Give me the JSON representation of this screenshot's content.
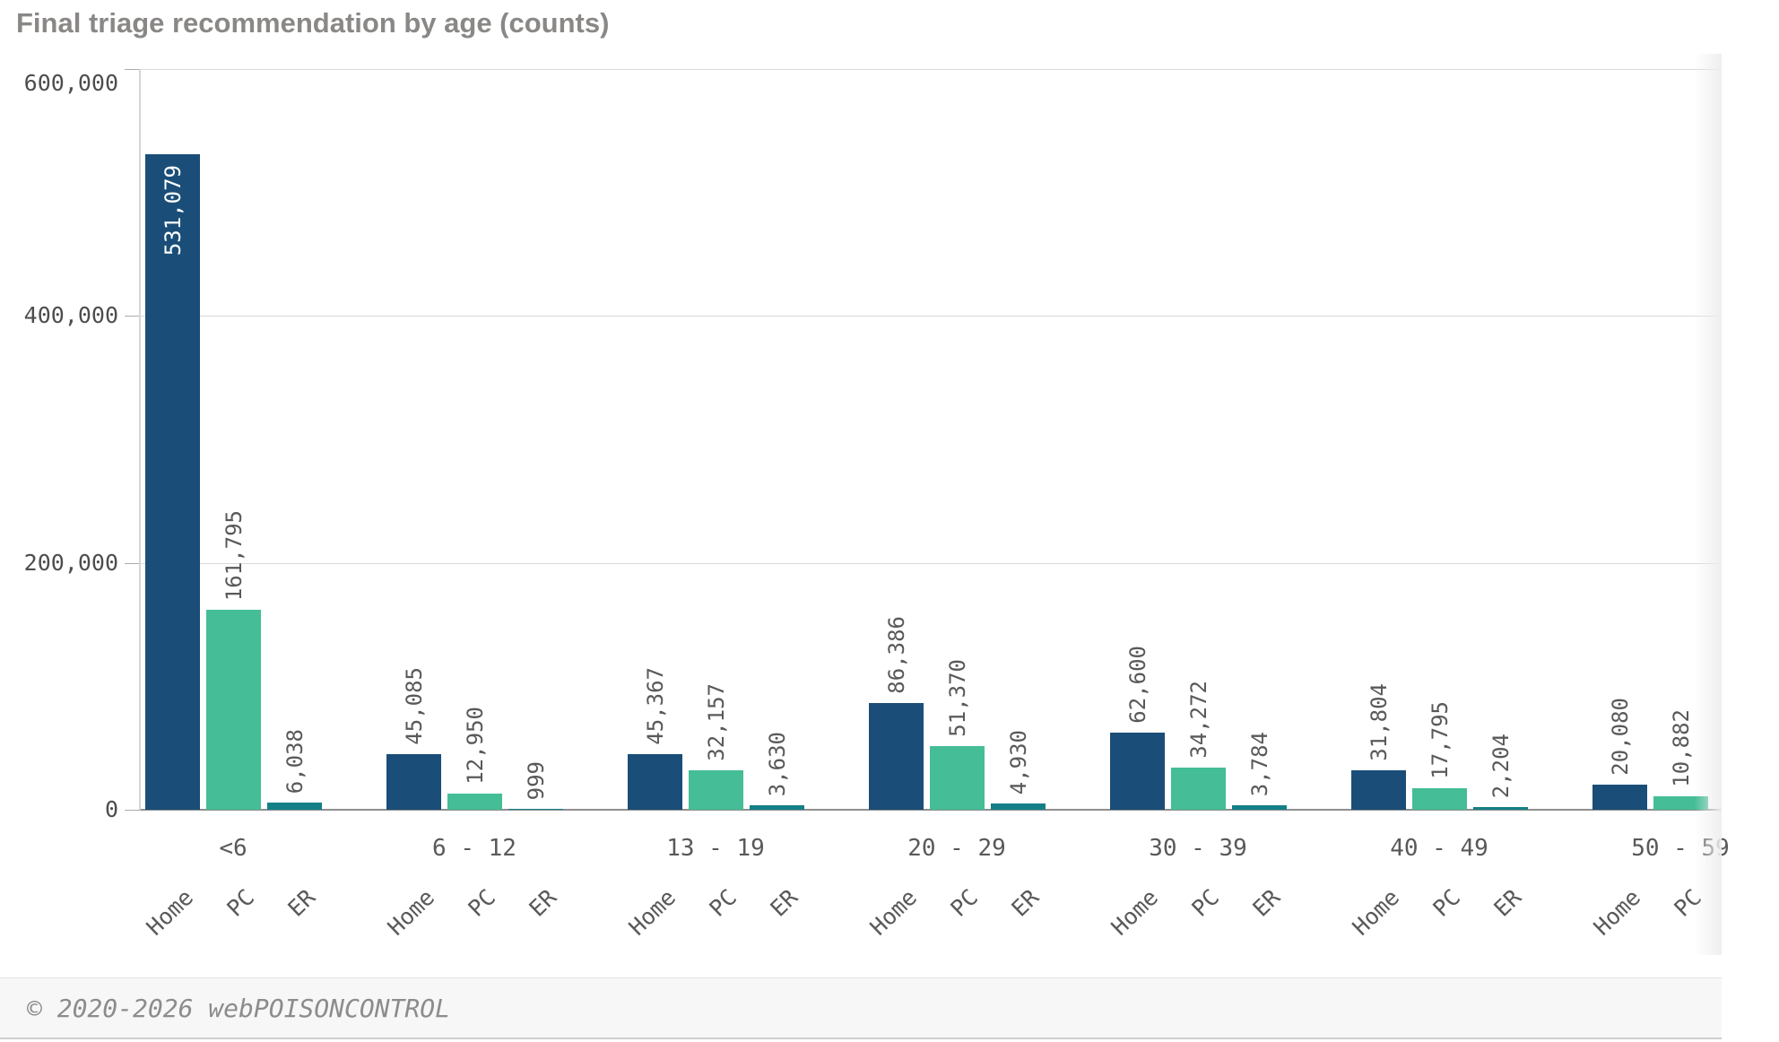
{
  "chart_data": {
    "type": "bar",
    "title": "Final triage recommendation by age (counts)",
    "categories": [
      "<6",
      "6 - 12",
      "13 - 19",
      "20 - 29",
      "30 - 39",
      "40 - 49",
      "50 - 59"
    ],
    "series": [
      {
        "name": "Home",
        "color": "#1a4e78",
        "values": [
          531079,
          45085,
          45367,
          86386,
          62600,
          31804,
          20080
        ]
      },
      {
        "name": "PC",
        "color": "#45bd97",
        "values": [
          161795,
          12950,
          32157,
          51370,
          34272,
          17795,
          10882
        ]
      },
      {
        "name": "ER",
        "color": "#147f87",
        "values": [
          6038,
          999,
          3630,
          4930,
          3784,
          2204,
          null
        ]
      }
    ],
    "ylim": [
      0,
      600000
    ],
    "ytick_values": [
      600000,
      400000,
      200000,
      0
    ],
    "ytick_labels": [
      "600,000",
      "400,000",
      "200,000",
      "0"
    ],
    "grid": true,
    "value_labels": true,
    "legend_position": "none",
    "xlabel": "",
    "ylabel": ""
  },
  "footer": {
    "copyright": "© 2020-2026 webPOISONCONTROL"
  }
}
